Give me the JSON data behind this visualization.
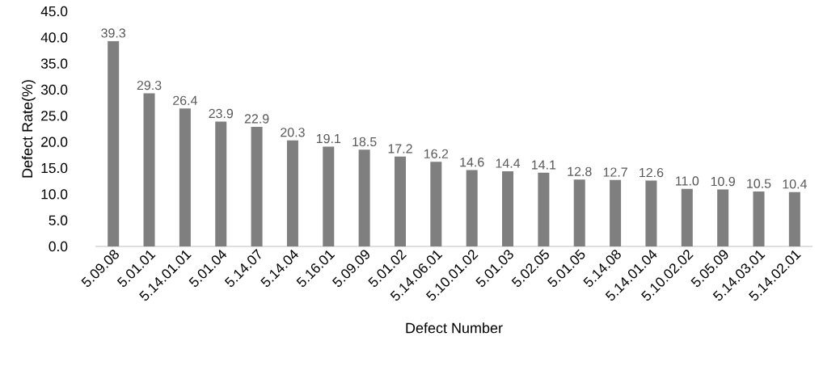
{
  "chart_data": {
    "type": "bar",
    "xlabel": "Defect Number",
    "ylabel": "Defect Rate(%)",
    "categories": [
      "5.09.08",
      "5.01.01",
      "5.14.01.01",
      "5.01.04",
      "5.14.07",
      "5.14.04",
      "5.16.01",
      "5.09.09",
      "5.01.02",
      "5.14.06.01",
      "5.10.01.02",
      "5.01.03",
      "5.02.05",
      "5.01.05",
      "5.14.08",
      "5.14.01.04",
      "5.10.02.02",
      "5.05.09",
      "5.14.03.01",
      "5.14.02.01"
    ],
    "values": [
      39.3,
      29.3,
      26.4,
      23.9,
      22.9,
      20.3,
      19.1,
      18.5,
      17.2,
      16.2,
      14.6,
      14.4,
      14.1,
      12.8,
      12.7,
      12.6,
      11.0,
      10.9,
      10.5,
      10.4
    ],
    "value_labels": [
      "39.3",
      "29.3",
      "26.4",
      "23.9",
      "22.9",
      "20.3",
      "19.1",
      "18.5",
      "17.2",
      "16.2",
      "14.6",
      "14.4",
      "14.1",
      "12.8",
      "12.7",
      "12.6",
      "11.0",
      "10.9",
      "10.5",
      "10.4"
    ],
    "color": "#7f7f7f",
    "ylim": [
      0,
      45
    ],
    "yticks": [
      {
        "value": 0,
        "label": "0.0"
      },
      {
        "value": 5,
        "label": "5.0"
      },
      {
        "value": 10,
        "label": "10.0"
      },
      {
        "value": 15,
        "label": "15.0"
      },
      {
        "value": 20,
        "label": "20.0"
      },
      {
        "value": 25,
        "label": "25.0"
      },
      {
        "value": 30,
        "label": "30.0"
      },
      {
        "value": 35,
        "label": "35.0"
      },
      {
        "value": 40,
        "label": "40.0"
      },
      {
        "value": 45,
        "label": "45.0"
      }
    ],
    "grid": false
  }
}
